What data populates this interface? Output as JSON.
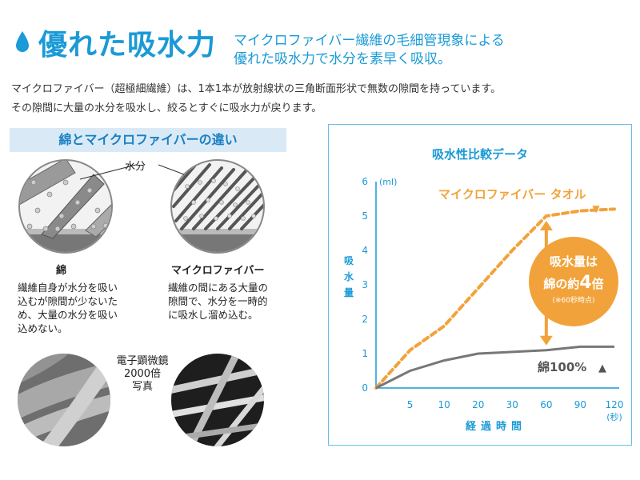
{
  "header": {
    "title": "優れた吸水力",
    "tagline_line1": "マイクロファイバー繊維の毛細管現象による",
    "tagline_line2": "優れた吸水力で水分を素早く吸収。"
  },
  "description": {
    "line1": "マイクロファイバー（超極細繊維）は、1本1本が放射線状の三角断面形状で無数の隙間を持っています。",
    "line2": "その隙間に大量の水分を吸水し、絞るとすぐに吸水力が戻ります。"
  },
  "comparison": {
    "heading": "綿とマイクロファイバーの違い",
    "water_label": "水分",
    "cotton": {
      "label": "綿",
      "text": [
        "繊維自身が水分を吸い",
        "込むが隙間が少ないた",
        "め、大量の水分を吸い",
        "込めない。"
      ]
    },
    "microfiber": {
      "label": "マイクロファイバー",
      "text": [
        "繊維の間にある大量の",
        "隙間で、水分を一時的",
        "に吸水し溜め込む。"
      ]
    },
    "microscope": [
      "電子顕微鏡",
      "2000倍",
      "写真"
    ]
  },
  "chart_data": {
    "type": "line",
    "title": "吸水性比較データ",
    "ylabel": "吸水量",
    "yunit": "(ml)",
    "xlabel": "経過時間",
    "xunit": "(秒)",
    "ylim": [
      0,
      6
    ],
    "yticks": [
      "0",
      "1",
      "2",
      "3",
      "4",
      "5",
      "6"
    ],
    "categories": [
      "0",
      "5",
      "10",
      "20",
      "30",
      "60",
      "90",
      "120"
    ],
    "series": [
      {
        "name": "マイクロファイバー タオル",
        "values": [
          0,
          1.1,
          1.8,
          2.9,
          4.0,
          5.0,
          5.15,
          5.2
        ],
        "color": "#f2a23a",
        "marker": "▼"
      },
      {
        "name": "綿100%",
        "values": [
          0,
          0.5,
          0.8,
          1.0,
          1.05,
          1.1,
          1.2,
          1.2
        ],
        "color": "#777777",
        "marker": "▲"
      }
    ],
    "callout": {
      "main1": "吸水量は",
      "main2": "綿の約",
      "big": "4",
      "suffix": "倍",
      "note": "(※60秒時点)"
    }
  }
}
